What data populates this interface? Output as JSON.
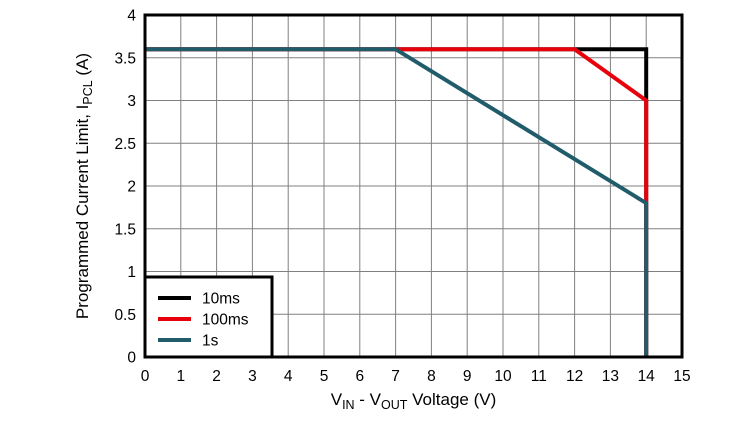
{
  "chart_data": {
    "type": "line",
    "title": "",
    "xlabel": "VIN - VOUT Voltage (V)",
    "ylabel": "Programmed Current Limit, IPCL (A)",
    "xlabel_parts": [
      {
        "text": "V",
        "sub": false
      },
      {
        "text": "IN",
        "sub": true
      },
      {
        "text": " - V",
        "sub": false
      },
      {
        "text": "OUT",
        "sub": true
      },
      {
        "text": " Voltage (V)",
        "sub": false
      }
    ],
    "ylabel_parts": [
      {
        "text": "Programmed Current Limit, I",
        "sub": false
      },
      {
        "text": "PCL",
        "sub": true
      },
      {
        "text": " (A)",
        "sub": false
      }
    ],
    "xlim": [
      0,
      15
    ],
    "ylim": [
      0,
      4
    ],
    "xticks": [
      0,
      1,
      2,
      3,
      4,
      5,
      6,
      7,
      8,
      9,
      10,
      11,
      12,
      13,
      14,
      15
    ],
    "xtick_labels": [
      "0",
      "1",
      "2",
      "3",
      "4",
      "5",
      "6",
      "7",
      "8",
      "9",
      "10",
      "11",
      "12",
      "13",
      "14",
      "15"
    ],
    "yticks": [
      0,
      0.5,
      1,
      1.5,
      2,
      2.5,
      3,
      3.5,
      4
    ],
    "ytick_labels": [
      "0",
      "0.5",
      "1",
      "1.5",
      "2",
      "2.5",
      "3",
      "3.5",
      "4"
    ],
    "grid": true,
    "legend_position": "bottom-left",
    "series": [
      {
        "name": "10ms",
        "color": "#000000",
        "points": [
          [
            0,
            3.6
          ],
          [
            14,
            3.6
          ],
          [
            14,
            0
          ]
        ]
      },
      {
        "name": "100ms",
        "color": "#e8000b",
        "points": [
          [
            0,
            3.6
          ],
          [
            12,
            3.6
          ],
          [
            14,
            3.0
          ],
          [
            14,
            0
          ]
        ]
      },
      {
        "name": "1s",
        "color": "#215c6b",
        "points": [
          [
            0,
            3.6
          ],
          [
            7,
            3.6
          ],
          [
            14,
            1.8
          ],
          [
            14,
            0
          ]
        ]
      }
    ],
    "colors": {
      "grid": "#808080",
      "axis_border": "#000000",
      "background": "#ffffff",
      "text": "#000000"
    }
  }
}
